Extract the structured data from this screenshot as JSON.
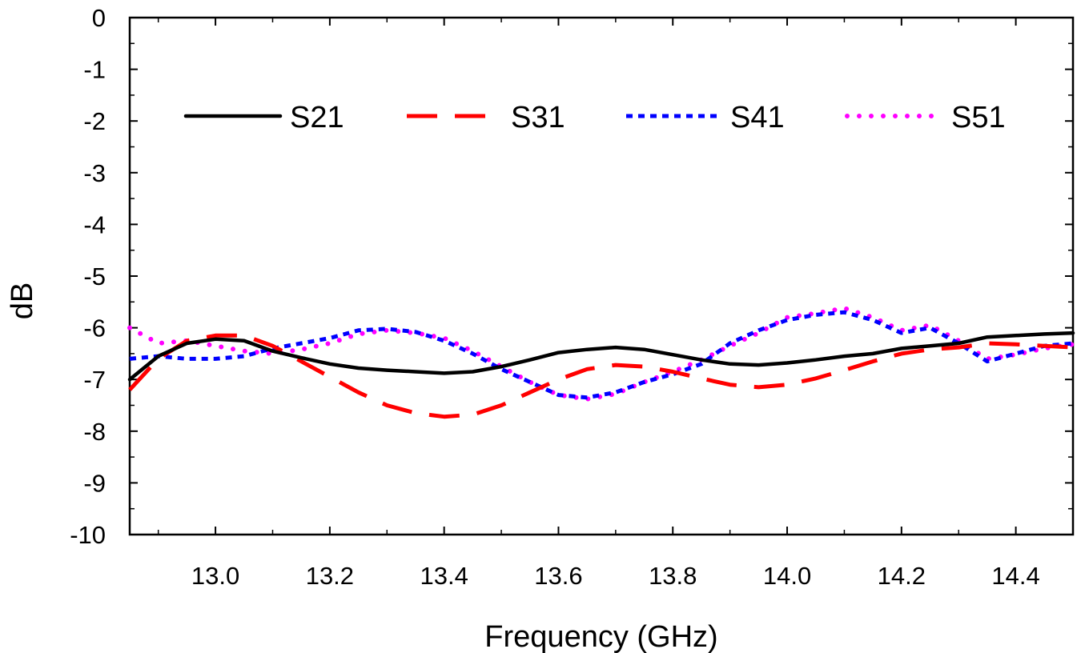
{
  "chart_data": {
    "type": "line",
    "title": "",
    "xlabel": "Frequency (GHz)",
    "ylabel": "dB",
    "xlim": [
      12.85,
      14.5
    ],
    "ylim": [
      -10,
      0
    ],
    "xticks": [
      13.0,
      13.2,
      13.4,
      13.6,
      13.8,
      14.0,
      14.2,
      14.4
    ],
    "xtick_labels": [
      "13.0",
      "13.2",
      "13.4",
      "13.6",
      "13.8",
      "14.0",
      "14.2",
      "14.4"
    ],
    "yticks": [
      0,
      -1,
      -2,
      -3,
      -4,
      -5,
      -6,
      -7,
      -8,
      -9,
      -10
    ],
    "ytick_labels": [
      "0",
      "-1",
      "-2",
      "-3",
      "-4",
      "-5",
      "-6",
      "-7",
      "-8",
      "-9",
      "-10"
    ],
    "grid": false,
    "legend_position": "top",
    "series": [
      {
        "name": "S21",
        "color": "#000000",
        "dash": "solid",
        "x": [
          12.85,
          12.9,
          12.95,
          13.0,
          13.05,
          13.1,
          13.15,
          13.2,
          13.25,
          13.3,
          13.35,
          13.4,
          13.45,
          13.5,
          13.55,
          13.6,
          13.65,
          13.7,
          13.75,
          13.8,
          13.85,
          13.9,
          13.95,
          14.0,
          14.05,
          14.1,
          14.15,
          14.2,
          14.25,
          14.3,
          14.35,
          14.4,
          14.45,
          14.5
        ],
        "y": [
          -7.0,
          -6.55,
          -6.3,
          -6.22,
          -6.25,
          -6.45,
          -6.58,
          -6.7,
          -6.78,
          -6.82,
          -6.85,
          -6.88,
          -6.85,
          -6.75,
          -6.62,
          -6.48,
          -6.42,
          -6.38,
          -6.42,
          -6.52,
          -6.62,
          -6.7,
          -6.72,
          -6.68,
          -6.62,
          -6.55,
          -6.5,
          -6.4,
          -6.35,
          -6.3,
          -6.18,
          -6.15,
          -6.12,
          -6.1
        ]
      },
      {
        "name": "S31",
        "color": "#ff0000",
        "dash": "dashed",
        "x": [
          12.85,
          12.9,
          12.95,
          13.0,
          13.05,
          13.1,
          13.15,
          13.2,
          13.25,
          13.3,
          13.35,
          13.4,
          13.45,
          13.5,
          13.55,
          13.6,
          13.65,
          13.7,
          13.75,
          13.8,
          13.85,
          13.9,
          13.95,
          14.0,
          14.05,
          14.1,
          14.15,
          14.2,
          14.25,
          14.3,
          14.35,
          14.4,
          14.45,
          14.5
        ],
        "y": [
          -7.2,
          -6.6,
          -6.25,
          -6.15,
          -6.15,
          -6.35,
          -6.65,
          -6.95,
          -7.25,
          -7.5,
          -7.65,
          -7.72,
          -7.68,
          -7.5,
          -7.25,
          -7.0,
          -6.8,
          -6.72,
          -6.75,
          -6.85,
          -6.98,
          -7.1,
          -7.15,
          -7.1,
          -6.98,
          -6.82,
          -6.65,
          -6.5,
          -6.42,
          -6.38,
          -6.3,
          -6.32,
          -6.35,
          -6.38
        ]
      },
      {
        "name": "S41",
        "color": "#0000ff",
        "dash": "dotted",
        "x": [
          12.85,
          12.9,
          12.95,
          13.0,
          13.05,
          13.1,
          13.15,
          13.2,
          13.25,
          13.3,
          13.35,
          13.4,
          13.45,
          13.5,
          13.55,
          13.6,
          13.65,
          13.7,
          13.75,
          13.8,
          13.85,
          13.9,
          13.95,
          14.0,
          14.05,
          14.1,
          14.15,
          14.2,
          14.25,
          14.3,
          14.35,
          14.4,
          14.45,
          14.5
        ],
        "y": [
          -6.6,
          -6.55,
          -6.6,
          -6.6,
          -6.55,
          -6.4,
          -6.3,
          -6.2,
          -6.05,
          -6.02,
          -6.08,
          -6.25,
          -6.5,
          -6.8,
          -7.05,
          -7.3,
          -7.35,
          -7.25,
          -7.05,
          -6.9,
          -6.7,
          -6.3,
          -6.05,
          -5.85,
          -5.75,
          -5.7,
          -5.85,
          -6.1,
          -6.0,
          -6.3,
          -6.65,
          -6.5,
          -6.35,
          -6.3
        ]
      },
      {
        "name": "S51",
        "color": "#ff00ff",
        "dash": "dotted",
        "x": [
          12.85,
          12.9,
          12.95,
          13.0,
          13.05,
          13.1,
          13.15,
          13.2,
          13.25,
          13.3,
          13.35,
          13.4,
          13.45,
          13.5,
          13.55,
          13.6,
          13.65,
          13.7,
          13.75,
          13.8,
          13.85,
          13.9,
          13.95,
          14.0,
          14.05,
          14.1,
          14.15,
          14.2,
          14.25,
          14.3,
          14.35,
          14.4,
          14.45,
          14.5
        ],
        "y": [
          -6.0,
          -6.3,
          -6.25,
          -6.35,
          -6.45,
          -6.5,
          -6.42,
          -6.3,
          -6.12,
          -6.05,
          -6.1,
          -6.2,
          -6.45,
          -6.75,
          -7.05,
          -7.3,
          -7.38,
          -7.28,
          -7.05,
          -6.85,
          -6.62,
          -6.35,
          -6.1,
          -5.8,
          -5.72,
          -5.62,
          -5.8,
          -6.05,
          -5.95,
          -6.25,
          -6.6,
          -6.52,
          -6.4,
          -6.32
        ]
      }
    ]
  }
}
